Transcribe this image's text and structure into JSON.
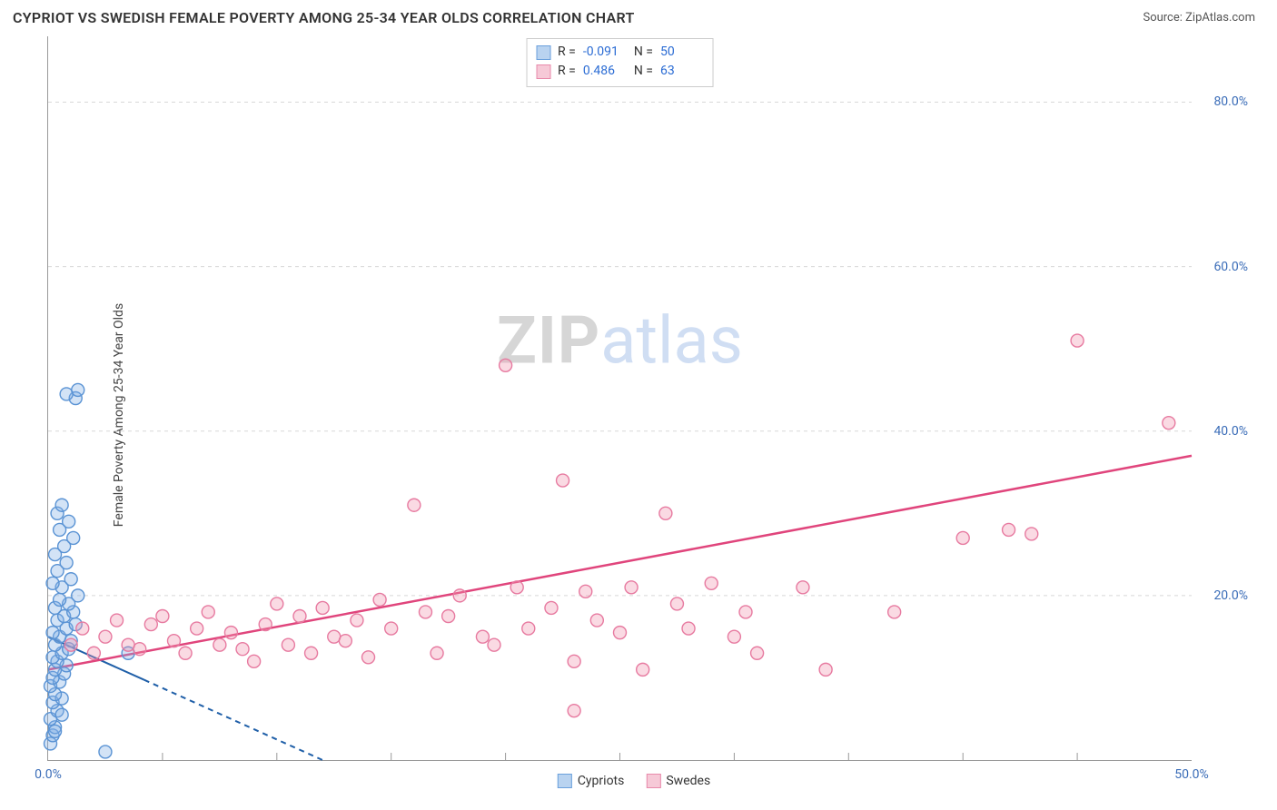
{
  "header": {
    "title": "CYPRIOT VS SWEDISH FEMALE POVERTY AMONG 25-34 YEAR OLDS CORRELATION CHART",
    "source_prefix": "Source: ",
    "source_name": "ZipAtlas.com"
  },
  "watermark": {
    "part1": "ZIP",
    "part2": "atlas"
  },
  "chart": {
    "type": "scatter",
    "ylabel": "Female Poverty Among 25-34 Year Olds",
    "xlim": [
      0,
      50
    ],
    "ylim": [
      0,
      88
    ],
    "background_color": "#ffffff",
    "grid_color": "#d8d8d8",
    "grid_dash": "4,4",
    "axis_color": "#999999",
    "tick_label_color": "#3b6db8",
    "yticks": [
      20,
      40,
      60,
      80
    ],
    "ytick_labels": [
      "20.0%",
      "40.0%",
      "60.0%",
      "80.0%"
    ],
    "xticks_minor": [
      5,
      10,
      15,
      20,
      25,
      30,
      35,
      40,
      45
    ],
    "xtick_labels": [
      {
        "v": 0,
        "label": "0.0%"
      },
      {
        "v": 50,
        "label": "50.0%"
      }
    ],
    "marker_radius": 7,
    "marker_stroke_width": 1.4,
    "series": [
      {
        "id": "cypriots",
        "name": "Cypriots",
        "fill": "rgba(130,175,230,0.35)",
        "stroke": "#5a93d4",
        "swatch_fill": "#b9d3f0",
        "swatch_stroke": "#6aa0dc",
        "r_value": "-0.091",
        "n_value": "50",
        "trend": {
          "x1": 0,
          "y1": 15,
          "x2": 12,
          "y2": 0,
          "solid_until_x": 4.2,
          "color": "#1f5fa8",
          "width": 2,
          "dash": "6,5"
        },
        "points": [
          [
            0.1,
            2
          ],
          [
            0.2,
            3
          ],
          [
            0.3,
            4
          ],
          [
            0.1,
            5
          ],
          [
            0.4,
            6
          ],
          [
            0.2,
            7
          ],
          [
            0.6,
            7.5
          ],
          [
            0.3,
            8
          ],
          [
            0.1,
            9
          ],
          [
            0.5,
            9.5
          ],
          [
            0.2,
            10
          ],
          [
            0.7,
            10.5
          ],
          [
            0.3,
            11
          ],
          [
            0.8,
            11.5
          ],
          [
            0.4,
            12
          ],
          [
            0.2,
            12.5
          ],
          [
            0.6,
            13
          ],
          [
            0.9,
            13.5
          ],
          [
            0.3,
            14
          ],
          [
            1.0,
            14.5
          ],
          [
            0.5,
            15
          ],
          [
            0.2,
            15.5
          ],
          [
            0.8,
            16
          ],
          [
            1.2,
            16.5
          ],
          [
            0.4,
            17
          ],
          [
            0.7,
            17.5
          ],
          [
            1.1,
            18
          ],
          [
            0.3,
            18.5
          ],
          [
            0.9,
            19
          ],
          [
            0.5,
            19.5
          ],
          [
            1.3,
            20
          ],
          [
            0.6,
            21
          ],
          [
            0.2,
            21.5
          ],
          [
            1.0,
            22
          ],
          [
            0.4,
            23
          ],
          [
            0.8,
            24
          ],
          [
            0.3,
            25
          ],
          [
            0.7,
            26
          ],
          [
            1.1,
            27
          ],
          [
            0.5,
            28
          ],
          [
            0.9,
            29
          ],
          [
            0.4,
            30
          ],
          [
            0.6,
            31
          ],
          [
            1.2,
            44
          ],
          [
            1.3,
            45
          ],
          [
            0.8,
            44.5
          ],
          [
            3.5,
            13
          ],
          [
            2.5,
            1
          ],
          [
            0.3,
            3.5
          ],
          [
            0.6,
            5.5
          ]
        ]
      },
      {
        "id": "swedes",
        "name": "Swedes",
        "fill": "rgba(240,150,175,0.35)",
        "stroke": "#e77aa0",
        "swatch_fill": "#f6c9d7",
        "swatch_stroke": "#e88aab",
        "r_value": "0.486",
        "n_value": "63",
        "trend": {
          "x1": 0,
          "y1": 11,
          "x2": 50,
          "y2": 37,
          "color": "#e0457c",
          "width": 2.5
        },
        "points": [
          [
            1,
            14
          ],
          [
            1.5,
            16
          ],
          [
            2,
            13
          ],
          [
            2.5,
            15
          ],
          [
            3,
            17
          ],
          [
            3.5,
            14
          ],
          [
            4,
            13.5
          ],
          [
            4.5,
            16.5
          ],
          [
            5,
            17.5
          ],
          [
            5.5,
            14.5
          ],
          [
            6,
            13
          ],
          [
            6.5,
            16
          ],
          [
            7,
            18
          ],
          [
            7.5,
            14
          ],
          [
            8,
            15.5
          ],
          [
            8.5,
            13.5
          ],
          [
            9,
            12
          ],
          [
            9.5,
            16.5
          ],
          [
            10,
            19
          ],
          [
            10.5,
            14
          ],
          [
            11,
            17.5
          ],
          [
            11.5,
            13
          ],
          [
            12,
            18.5
          ],
          [
            12.5,
            15
          ],
          [
            13,
            14.5
          ],
          [
            13.5,
            17
          ],
          [
            14,
            12.5
          ],
          [
            14.5,
            19.5
          ],
          [
            15,
            16
          ],
          [
            16,
            31
          ],
          [
            16.5,
            18
          ],
          [
            17,
            13
          ],
          [
            17.5,
            17.5
          ],
          [
            18,
            20
          ],
          [
            19,
            15
          ],
          [
            19.5,
            14
          ],
          [
            20,
            48
          ],
          [
            20.5,
            21
          ],
          [
            21,
            16
          ],
          [
            22,
            18.5
          ],
          [
            22.5,
            34
          ],
          [
            23,
            12
          ],
          [
            23.5,
            20.5
          ],
          [
            24,
            17
          ],
          [
            25,
            15.5
          ],
          [
            25.5,
            21
          ],
          [
            26,
            11
          ],
          [
            27,
            30
          ],
          [
            27.5,
            19
          ],
          [
            28,
            16
          ],
          [
            29,
            21.5
          ],
          [
            30,
            15
          ],
          [
            30.5,
            18
          ],
          [
            31,
            13
          ],
          [
            33,
            21
          ],
          [
            34,
            11
          ],
          [
            37,
            18
          ],
          [
            40,
            27
          ],
          [
            42,
            28
          ],
          [
            43,
            27.5
          ],
          [
            45,
            51
          ],
          [
            49,
            41
          ],
          [
            23,
            6
          ]
        ]
      }
    ],
    "stats_box": {
      "r_label": "R =",
      "n_label": "N ="
    },
    "legend": {
      "items": [
        "Cypriots",
        "Swedes"
      ]
    }
  }
}
